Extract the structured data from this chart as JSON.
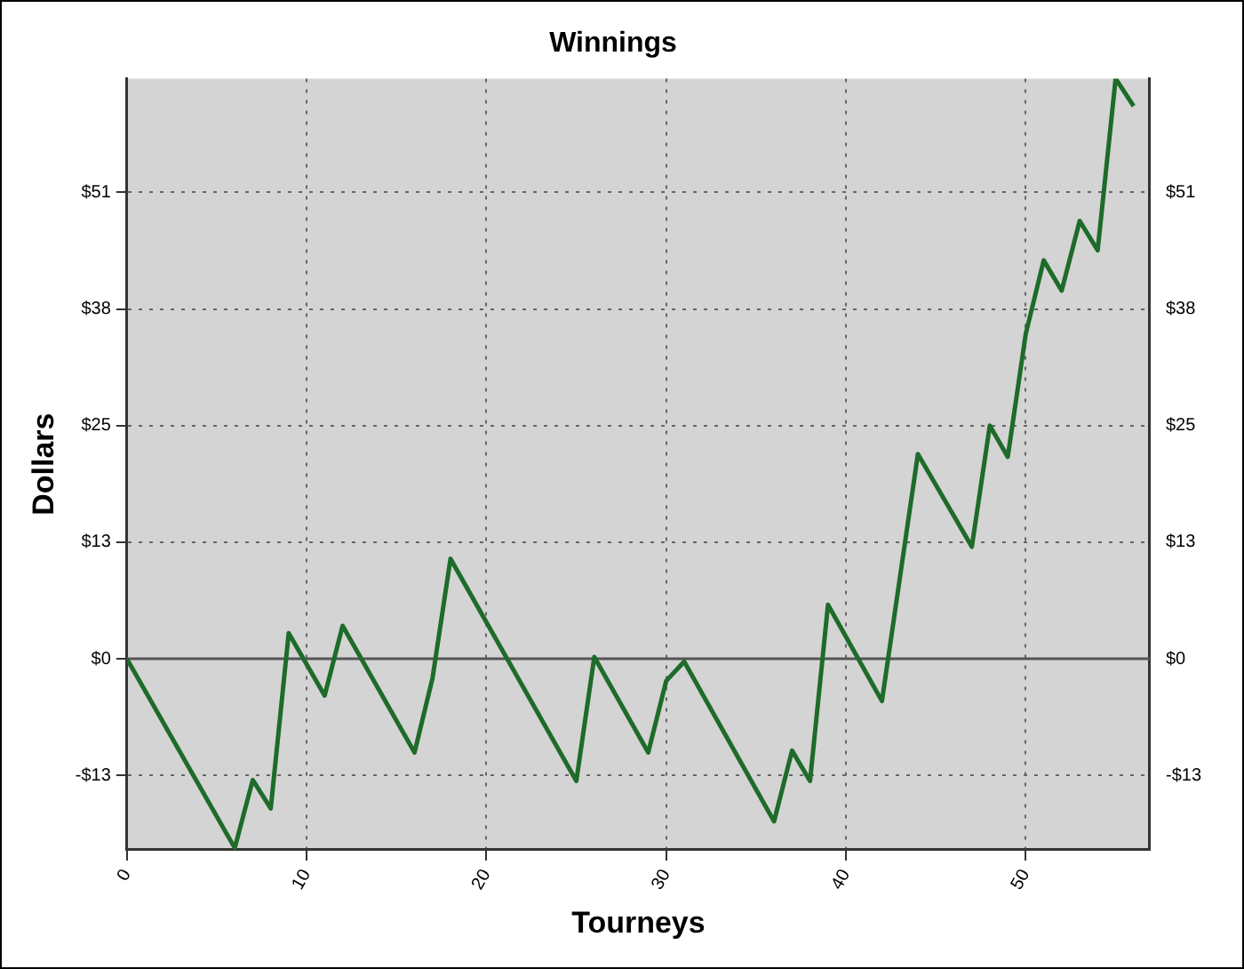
{
  "chart_data": {
    "type": "line",
    "title": "Winnings",
    "xlabel": "Tourneys",
    "ylabel": "Dollars",
    "x": [
      0,
      6,
      7,
      8,
      9,
      11,
      12,
      16,
      17,
      18,
      25,
      26,
      29,
      30,
      31,
      36,
      37,
      38,
      39,
      42,
      44,
      47,
      48,
      49,
      50,
      51,
      52,
      53,
      54,
      55,
      56
    ],
    "series": [
      {
        "color": "#1e6b2a",
        "values": [
          0,
          -20.6,
          -13.2,
          -16.3,
          2.8,
          -4.0,
          3.6,
          -10.2,
          -2.1,
          10.9,
          -13.3,
          0.2,
          -10.2,
          -2.4,
          -0.3,
          -17.7,
          -10.0,
          -13.3,
          5.9,
          -4.6,
          22.3,
          12.2,
          25.4,
          22.0,
          35.4,
          43.4,
          40.1,
          47.7,
          44.5,
          63.2,
          60.2
        ]
      }
    ],
    "xlim": [
      0,
      56.9
    ],
    "xticks": [
      0,
      10,
      20,
      30,
      40,
      50
    ],
    "ylim": [
      -20.8,
      63.2
    ],
    "yticks": [
      {
        "value": -12.7,
        "label": "-$13"
      },
      {
        "value": 0,
        "label": "$0"
      },
      {
        "value": 12.7,
        "label": "$13"
      },
      {
        "value": 25.4,
        "label": "$25"
      },
      {
        "value": 38.1,
        "label": "$38"
      },
      {
        "value": 50.8,
        "label": "$51"
      }
    ],
    "y2lim": [
      -20.8,
      63.2
    ],
    "y2ticks": [
      {
        "value": -12.7,
        "label": "-$13"
      },
      {
        "value": 0,
        "label": "$0"
      },
      {
        "value": 12.7,
        "label": "$13"
      },
      {
        "value": 25.4,
        "label": "$25"
      },
      {
        "value": 38.1,
        "label": "$38"
      },
      {
        "value": 50.8,
        "label": "$51"
      }
    ],
    "ref_lines": [
      {
        "axis": "y",
        "value": 0,
        "color": "#555555",
        "line_style": "solid"
      }
    ],
    "grid": true,
    "legend": false,
    "marker": "none",
    "line_style": "solid"
  }
}
